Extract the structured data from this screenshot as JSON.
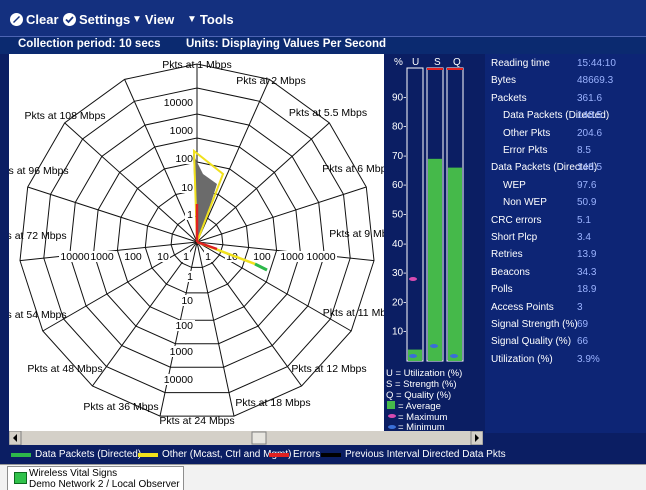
{
  "toolbar": {
    "clear": "Clear",
    "settings": "Settings",
    "view": "View",
    "tools": "Tools"
  },
  "subheader": {
    "period": "Collection period: 10 secs",
    "units": "Units: Displaying Values Per Second"
  },
  "radar": {
    "axes": [
      "Pkts at 1 Mbps",
      "Pkts at 2 Mbps",
      "Pkts at 5.5 Mbps",
      "Pkts at 6 Mbps",
      "Pkts at 9 Mbps",
      "Pkts at 11 Mbps",
      "Pkts at 12 Mbps",
      "Pkts at 18 Mbps",
      "Pkts at 24 Mbps",
      "Pkts at 36 Mbps",
      "Pkts at 48 Mbps",
      "Pkts at 54 Mbps",
      "Pkts at 72 Mbps",
      "Pkts at 96 Mbps",
      "Pkts at 108 Mbps"
    ],
    "ring_labels": [
      "1",
      "10",
      "100",
      "1000",
      "10000"
    ],
    "axis_ticks_horizontal": [
      "10000",
      "1000",
      "100",
      "10",
      "1",
      "1",
      "10",
      "100",
      "1000",
      "10000"
    ]
  },
  "bars": {
    "headers": [
      "%",
      "U",
      "S",
      "Q"
    ],
    "scale": [
      "90-",
      "80-",
      "70-",
      "60-",
      "50-",
      "40-",
      "30-",
      "20-",
      "10-"
    ],
    "utilization": 3.9,
    "strength": 69,
    "quality": 66,
    "key": [
      "U = Utilization (%)",
      "S = Strength (%)",
      "Q = Quality (%)",
      "= Average",
      "= Maximum",
      "= Minimum"
    ]
  },
  "stats": [
    {
      "label": "Reading time",
      "value": "15:44:10"
    },
    {
      "label": "Bytes",
      "value": "48669.3"
    },
    {
      "label": "Packets",
      "value": "361.6"
    },
    {
      "label": "Data Packets (Directed)",
      "value": "148.5"
    },
    {
      "label": "Other Pkts",
      "value": "204.6"
    },
    {
      "label": "Error Pkts",
      "value": "8.5"
    },
    {
      "label": "Data Packets (Directed)",
      "value": "148.5"
    },
    {
      "label": "WEP",
      "value": "97.6"
    },
    {
      "label": "Non WEP",
      "value": "50.9"
    },
    {
      "label": "CRC errors",
      "value": "5.1"
    },
    {
      "label": "Short Plcp",
      "value": "3.4"
    },
    {
      "label": "Retries",
      "value": "13.9"
    },
    {
      "label": "Beacons",
      "value": "34.3"
    },
    {
      "label": "Polls",
      "value": "18.9"
    },
    {
      "label": "Access Points",
      "value": "3"
    },
    {
      "label": "Signal Strength (%)",
      "value": "69"
    },
    {
      "label": "Signal Quality (%)",
      "value": "66"
    },
    {
      "label": "Utilization (%)",
      "value": "3.9%"
    }
  ],
  "legend": {
    "data": "Data Packets (Directed)",
    "other": "Other (Mcast, Ctrl and Mgmt)",
    "errors": "Errors",
    "prev": "Previous Interval Directed Data Pkts"
  },
  "status": {
    "line1": "Wireless Vital Signs",
    "line2": "Demo Network 2 / Local Observer"
  },
  "colors": {
    "data": "#2db84a",
    "other": "#f1e11c",
    "errors": "#e02121",
    "prev": "#000000",
    "bar_fill": "#45b94a"
  }
}
